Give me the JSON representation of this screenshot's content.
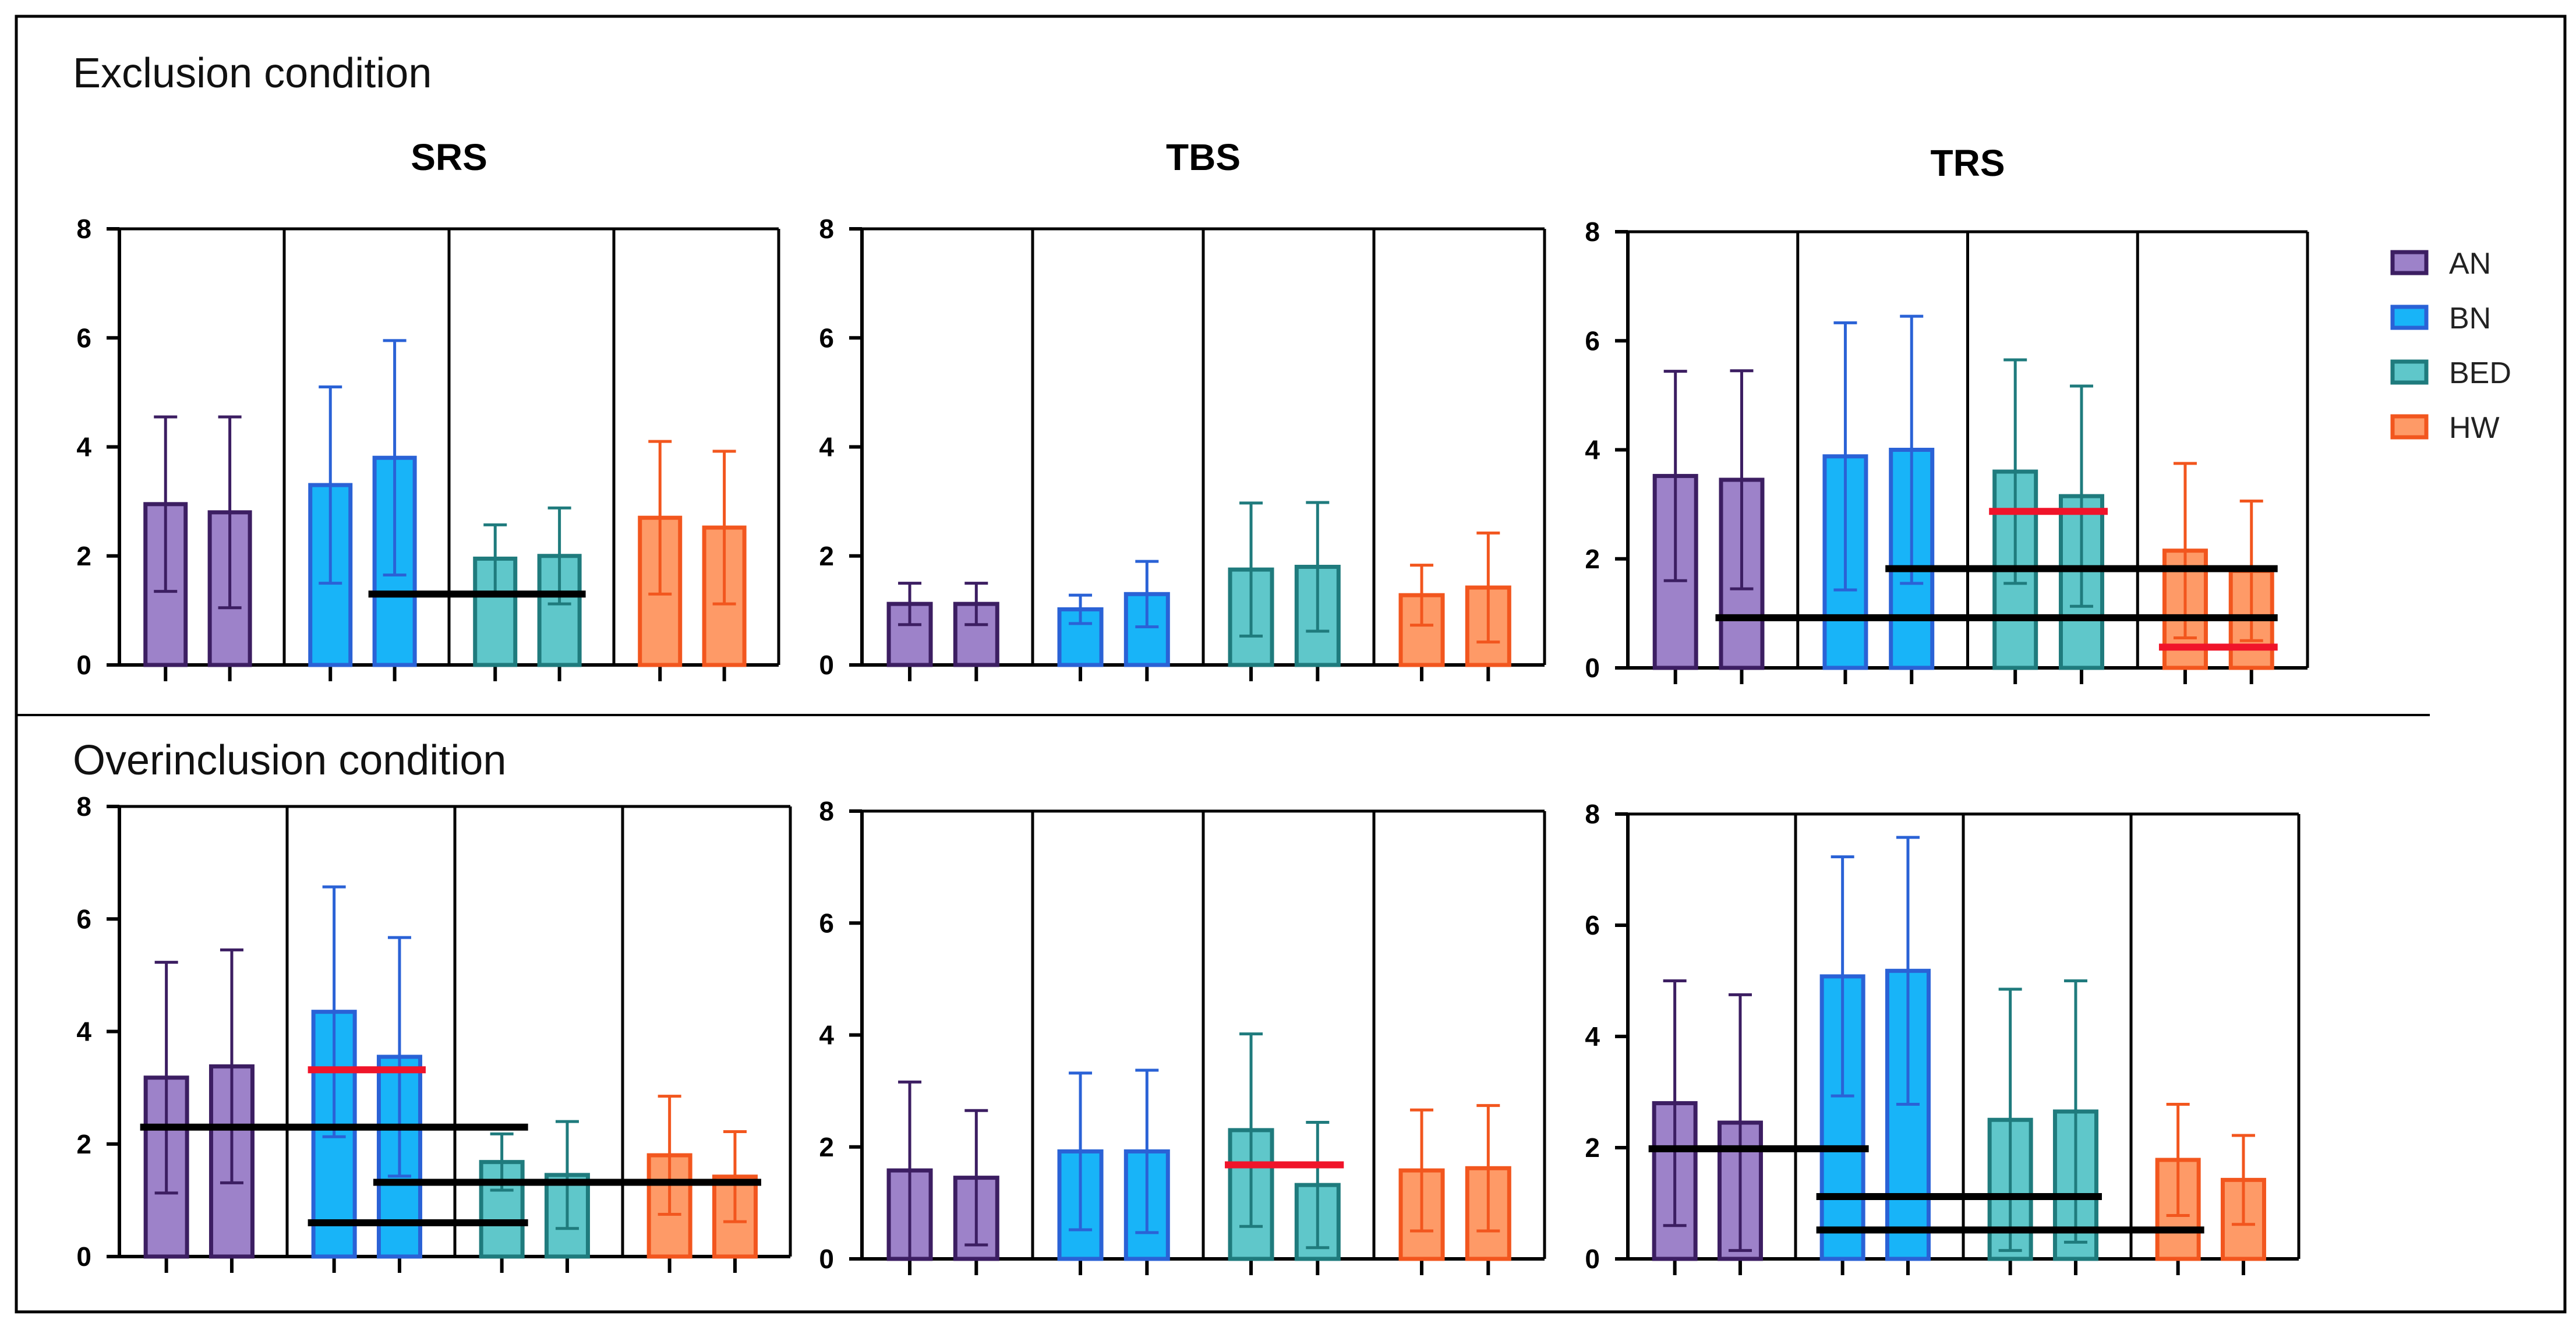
{
  "sections": [
    {
      "label": "Exclusion condition"
    },
    {
      "label": "Overinclusion condition"
    }
  ],
  "legend": [
    {
      "label": "AN",
      "color": "#9D82C9",
      "edge": "#3C1E62"
    },
    {
      "label": "BN",
      "color": "#18B4F8",
      "edge": "#2A62D6"
    },
    {
      "label": "BED",
      "color": "#5FC7CA",
      "edge": "#1F7B7D"
    },
    {
      "label": "HW",
      "color": "#FE9A67",
      "edge": "#F2561E"
    }
  ],
  "chart_data": [
    {
      "type": "bar",
      "condition": "Exclusion condition",
      "title": "SRS",
      "ylim": [
        0,
        8
      ],
      "yticks": [
        "0",
        "2",
        "4",
        "6",
        "8"
      ],
      "groups": [
        "AN",
        "BN",
        "BED",
        "HW"
      ],
      "series": [
        {
          "group": "AN",
          "values": [
            2.95,
            2.8
          ],
          "errors": [
            1.6,
            1.75
          ]
        },
        {
          "group": "BN",
          "values": [
            3.3,
            3.8
          ],
          "errors": [
            1.8,
            2.15
          ]
        },
        {
          "group": "BED",
          "values": [
            1.95,
            2.0
          ],
          "errors": [
            0.62,
            0.88
          ]
        },
        {
          "group": "HW",
          "values": [
            2.7,
            2.52
          ],
          "errors": [
            1.4,
            1.4
          ]
        }
      ],
      "significance": [
        {
          "y": 1.3,
          "from": [
            1,
            1
          ],
          "to": [
            2,
            1
          ],
          "color": "black"
        }
      ]
    },
    {
      "type": "bar",
      "condition": "Exclusion condition",
      "title": "TBS",
      "ylim": [
        0,
        8
      ],
      "yticks": [
        "0",
        "2",
        "4",
        "6",
        "8"
      ],
      "groups": [
        "AN",
        "BN",
        "BED",
        "HW"
      ],
      "series": [
        {
          "group": "AN",
          "values": [
            1.12,
            1.12
          ],
          "errors": [
            0.38,
            0.38
          ]
        },
        {
          "group": "BN",
          "values": [
            1.02,
            1.3
          ],
          "errors": [
            0.26,
            0.6
          ]
        },
        {
          "group": "BED",
          "values": [
            1.75,
            1.8
          ],
          "errors": [
            1.22,
            1.18
          ]
        },
        {
          "group": "HW",
          "values": [
            1.28,
            1.42
          ],
          "errors": [
            0.55,
            1.0
          ]
        }
      ],
      "significance": []
    },
    {
      "type": "bar",
      "condition": "Exclusion condition",
      "title": "TRS",
      "ylim": [
        0,
        8
      ],
      "yticks": [
        "0",
        "2",
        "4",
        "6",
        "8"
      ],
      "groups": [
        "AN",
        "BN",
        "BED",
        "HW"
      ],
      "series": [
        {
          "group": "AN",
          "values": [
            3.52,
            3.45
          ],
          "errors": [
            1.92,
            2.0
          ]
        },
        {
          "group": "BN",
          "values": [
            3.88,
            4.0
          ],
          "errors": [
            2.45,
            2.45
          ]
        },
        {
          "group": "BED",
          "values": [
            3.6,
            3.15
          ],
          "errors": [
            2.05,
            2.02
          ]
        },
        {
          "group": "HW",
          "values": [
            2.15,
            1.78
          ],
          "errors": [
            1.6,
            1.28
          ]
        }
      ],
      "significance": [
        {
          "y": 1.82,
          "from": [
            1,
            1
          ],
          "to": [
            3,
            1
          ],
          "color": "black"
        },
        {
          "y": 0.92,
          "from": [
            0,
            1
          ],
          "to": [
            3,
            1
          ],
          "color": "black"
        },
        {
          "y": 2.87,
          "from": [
            2,
            0
          ],
          "to": [
            2,
            1
          ],
          "color": "red"
        },
        {
          "y": 0.38,
          "from": [
            3,
            0
          ],
          "to": [
            3,
            1
          ],
          "color": "red"
        }
      ]
    },
    {
      "type": "bar",
      "condition": "Overinclusion condition",
      "title": "SRS",
      "ylim": [
        0,
        8
      ],
      "yticks": [
        "0",
        "2",
        "4",
        "6",
        "8"
      ],
      "groups": [
        "AN",
        "BN",
        "BED",
        "HW"
      ],
      "series": [
        {
          "group": "AN",
          "values": [
            3.18,
            3.38
          ],
          "errors": [
            2.05,
            2.07
          ]
        },
        {
          "group": "BN",
          "values": [
            4.35,
            3.55
          ],
          "errors": [
            2.22,
            2.12
          ]
        },
        {
          "group": "BED",
          "values": [
            1.68,
            1.45
          ],
          "errors": [
            0.5,
            0.95
          ]
        },
        {
          "group": "HW",
          "values": [
            1.8,
            1.42
          ],
          "errors": [
            1.05,
            0.8
          ]
        }
      ],
      "significance": [
        {
          "y": 3.32,
          "from": [
            1,
            0
          ],
          "to": [
            1,
            1
          ],
          "color": "red"
        },
        {
          "y": 2.3,
          "from": [
            0,
            0
          ],
          "to": [
            2,
            0
          ],
          "color": "black"
        },
        {
          "y": 1.32,
          "from": [
            1,
            1
          ],
          "to": [
            3,
            1
          ],
          "color": "black"
        },
        {
          "y": 0.6,
          "from": [
            1,
            0
          ],
          "to": [
            2,
            0
          ],
          "color": "black"
        }
      ]
    },
    {
      "type": "bar",
      "condition": "Overinclusion condition",
      "title": "TBS",
      "ylim": [
        0,
        8
      ],
      "yticks": [
        "0",
        "2",
        "4",
        "6",
        "8"
      ],
      "groups": [
        "AN",
        "BN",
        "BED",
        "HW"
      ],
      "series": [
        {
          "group": "AN",
          "values": [
            1.58,
            1.45
          ],
          "errors": [
            1.58,
            1.2
          ]
        },
        {
          "group": "BN",
          "values": [
            1.92,
            1.92
          ],
          "errors": [
            1.4,
            1.45
          ]
        },
        {
          "group": "BED",
          "values": [
            2.3,
            1.32
          ],
          "errors": [
            1.72,
            1.12
          ]
        },
        {
          "group": "HW",
          "values": [
            1.58,
            1.62
          ],
          "errors": [
            1.08,
            1.12
          ]
        }
      ],
      "significance": [
        {
          "y": 1.68,
          "from": [
            2,
            0
          ],
          "to": [
            2,
            1
          ],
          "color": "red"
        }
      ]
    },
    {
      "type": "bar",
      "condition": "Overinclusion condition",
      "title": "TRS",
      "ylim": [
        0,
        8
      ],
      "yticks": [
        "0",
        "2",
        "4",
        "6",
        "8"
      ],
      "groups": [
        "AN",
        "BN",
        "BED",
        "HW"
      ],
      "series": [
        {
          "group": "AN",
          "values": [
            2.8,
            2.45
          ],
          "errors": [
            2.2,
            2.3
          ]
        },
        {
          "group": "BN",
          "values": [
            5.08,
            5.18
          ],
          "errors": [
            2.15,
            2.4
          ]
        },
        {
          "group": "BED",
          "values": [
            2.5,
            2.65
          ],
          "errors": [
            2.35,
            2.35
          ]
        },
        {
          "group": "HW",
          "values": [
            1.78,
            1.42
          ],
          "errors": [
            1.0,
            0.8
          ]
        }
      ],
      "significance": [
        {
          "y": 1.98,
          "from": [
            0,
            0
          ],
          "to": [
            1,
            0
          ],
          "color": "black"
        },
        {
          "y": 1.12,
          "from": [
            1,
            0
          ],
          "to": [
            2,
            1
          ],
          "color": "black"
        },
        {
          "y": 0.52,
          "from": [
            1,
            0
          ],
          "to": [
            3,
            0
          ],
          "color": "black"
        }
      ]
    }
  ]
}
